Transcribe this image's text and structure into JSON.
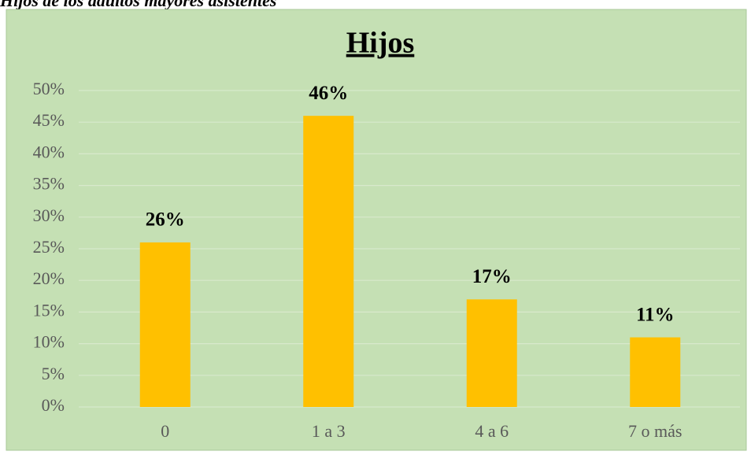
{
  "caption": "Hijos de los adultos mayores asistentes",
  "chart_data": {
    "type": "bar",
    "title": "Hijos",
    "categories": [
      "0",
      "1 a 3",
      "4 a 6",
      "7 o más"
    ],
    "values": [
      26,
      46,
      17,
      11
    ],
    "value_labels": [
      "26%",
      "46%",
      "17%",
      "11%"
    ],
    "color": "#ffc000",
    "ylim": [
      0,
      50
    ],
    "yticks": [
      {
        "value": 0,
        "label": "0%"
      },
      {
        "value": 5,
        "label": "5%"
      },
      {
        "value": 10,
        "label": "10%"
      },
      {
        "value": 15,
        "label": "15%"
      },
      {
        "value": 20,
        "label": "20%"
      },
      {
        "value": 25,
        "label": "25%"
      },
      {
        "value": 30,
        "label": "30%"
      },
      {
        "value": 35,
        "label": "35%"
      },
      {
        "value": 40,
        "label": "40%"
      },
      {
        "value": 45,
        "label": "45%"
      },
      {
        "value": 50,
        "label": "50%"
      }
    ],
    "grid": true
  }
}
